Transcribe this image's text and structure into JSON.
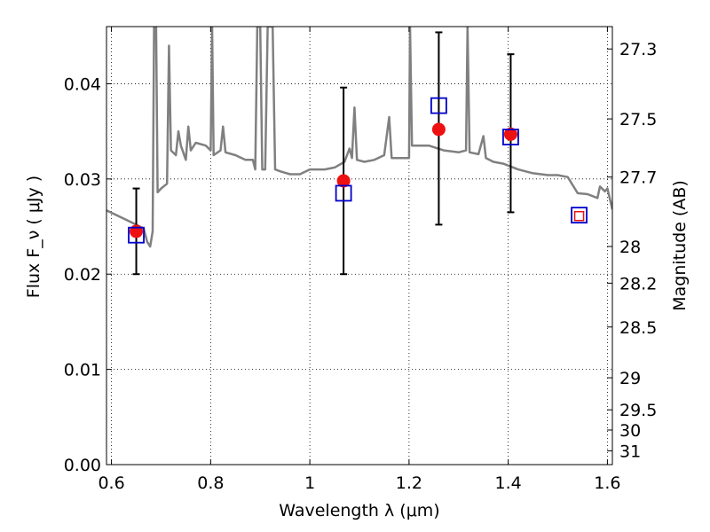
{
  "chart_data": {
    "type": "scatter",
    "xlabel": "Wavelength  λ (μm)",
    "ylabel": "Flux  F_ν  ( μJy )",
    "y2label": "Magnitude (AB)",
    "xlim": [
      0.59,
      1.61
    ],
    "ylim": [
      0.0,
      0.046
    ],
    "grid": true,
    "x_ticks": [
      0.6,
      0.8,
      1.0,
      1.2,
      1.4,
      1.6
    ],
    "x_tick_labels": [
      "0.6",
      "0.8",
      "1",
      "1.2",
      "1.4",
      "1.6"
    ],
    "y_ticks": [
      0.0,
      0.01,
      0.02,
      0.03,
      0.04
    ],
    "y_tick_labels": [
      "0.00",
      "0.01",
      "0.02",
      "0.03",
      "0.04"
    ],
    "mag_ticks": [
      27.3,
      27.5,
      27.7,
      28,
      28.2,
      28.5,
      29,
      29.5,
      30,
      31
    ],
    "mag_tick_labels": [
      "27.3",
      "27.5",
      "27.7",
      "28",
      "28.2",
      "28.5",
      "29",
      "29.5",
      "30",
      "31"
    ],
    "series": [
      {
        "kind": "observed",
        "color": "#ee1111",
        "points": [
          {
            "x": 0.65,
            "y": 0.0245,
            "yerr": [
              0.02,
              0.029
            ]
          },
          {
            "x": 1.068,
            "y": 0.0298,
            "yerr": [
              0.02,
              0.0396
            ]
          },
          {
            "x": 1.26,
            "y": 0.0352,
            "yerr": [
              0.0252,
              0.0454
            ]
          },
          {
            "x": 1.405,
            "y": 0.0347,
            "yerr": [
              0.0265,
              0.0431
            ]
          }
        ]
      },
      {
        "kind": "model-synthetic",
        "color": "#0000cc",
        "points": [
          {
            "x": 0.65,
            "y": 0.0241
          },
          {
            "x": 1.068,
            "y": 0.0285
          },
          {
            "x": 1.26,
            "y": 0.0377
          },
          {
            "x": 1.405,
            "y": 0.0344
          },
          {
            "x": 1.543,
            "y": 0.0262
          }
        ]
      },
      {
        "kind": "model-synthetic-inner",
        "color": "#ee1111",
        "points": [
          {
            "x": 1.543,
            "y": 0.0261
          }
        ]
      },
      {
        "kind": "template-spectrum",
        "color": "#808080",
        "points": [
          {
            "x": 0.59,
            "y": 0.0267
          },
          {
            "x": 0.61,
            "y": 0.0262
          },
          {
            "x": 0.63,
            "y": 0.0257
          },
          {
            "x": 0.65,
            "y": 0.0252
          },
          {
            "x": 0.665,
            "y": 0.0248
          },
          {
            "x": 0.672,
            "y": 0.0234
          },
          {
            "x": 0.678,
            "y": 0.0229
          },
          {
            "x": 0.683,
            "y": 0.0245
          },
          {
            "x": 0.686,
            "y": 0.046
          },
          {
            "x": 0.69,
            "y": 0.046
          },
          {
            "x": 0.693,
            "y": 0.0286
          },
          {
            "x": 0.7,
            "y": 0.029
          },
          {
            "x": 0.712,
            "y": 0.0295
          },
          {
            "x": 0.716,
            "y": 0.044
          },
          {
            "x": 0.72,
            "y": 0.033
          },
          {
            "x": 0.73,
            "y": 0.0325
          },
          {
            "x": 0.735,
            "y": 0.035
          },
          {
            "x": 0.74,
            "y": 0.0335
          },
          {
            "x": 0.75,
            "y": 0.032
          },
          {
            "x": 0.755,
            "y": 0.0355
          },
          {
            "x": 0.76,
            "y": 0.033
          },
          {
            "x": 0.77,
            "y": 0.0338
          },
          {
            "x": 0.79,
            "y": 0.0335
          },
          {
            "x": 0.8,
            "y": 0.033
          },
          {
            "x": 0.803,
            "y": 0.046
          },
          {
            "x": 0.806,
            "y": 0.0325
          },
          {
            "x": 0.82,
            "y": 0.033
          },
          {
            "x": 0.825,
            "y": 0.0355
          },
          {
            "x": 0.83,
            "y": 0.0328
          },
          {
            "x": 0.85,
            "y": 0.0325
          },
          {
            "x": 0.87,
            "y": 0.032
          },
          {
            "x": 0.885,
            "y": 0.032
          },
          {
            "x": 0.89,
            "y": 0.031
          },
          {
            "x": 0.894,
            "y": 0.046
          },
          {
            "x": 0.9,
            "y": 0.046
          },
          {
            "x": 0.904,
            "y": 0.031
          },
          {
            "x": 0.91,
            "y": 0.031
          },
          {
            "x": 0.915,
            "y": 0.046
          },
          {
            "x": 0.925,
            "y": 0.046
          },
          {
            "x": 0.93,
            "y": 0.031
          },
          {
            "x": 0.94,
            "y": 0.0308
          },
          {
            "x": 0.96,
            "y": 0.0305
          },
          {
            "x": 0.98,
            "y": 0.0305
          },
          {
            "x": 1.0,
            "y": 0.031
          },
          {
            "x": 1.03,
            "y": 0.031
          },
          {
            "x": 1.05,
            "y": 0.0312
          },
          {
            "x": 1.07,
            "y": 0.0318
          },
          {
            "x": 1.08,
            "y": 0.0332
          },
          {
            "x": 1.085,
            "y": 0.0322
          },
          {
            "x": 1.09,
            "y": 0.0375
          },
          {
            "x": 1.095,
            "y": 0.032
          },
          {
            "x": 1.11,
            "y": 0.0318
          },
          {
            "x": 1.13,
            "y": 0.032
          },
          {
            "x": 1.15,
            "y": 0.0325
          },
          {
            "x": 1.16,
            "y": 0.0365
          },
          {
            "x": 1.165,
            "y": 0.0322
          },
          {
            "x": 1.18,
            "y": 0.0322
          },
          {
            "x": 1.2,
            "y": 0.0322
          },
          {
            "x": 1.202,
            "y": 0.046
          },
          {
            "x": 1.206,
            "y": 0.0335
          },
          {
            "x": 1.24,
            "y": 0.0335
          },
          {
            "x": 1.27,
            "y": 0.033
          },
          {
            "x": 1.3,
            "y": 0.0328
          },
          {
            "x": 1.315,
            "y": 0.033
          },
          {
            "x": 1.318,
            "y": 0.046
          },
          {
            "x": 1.322,
            "y": 0.0328
          },
          {
            "x": 1.34,
            "y": 0.0326
          },
          {
            "x": 1.35,
            "y": 0.0345
          },
          {
            "x": 1.355,
            "y": 0.0322
          },
          {
            "x": 1.37,
            "y": 0.0318
          },
          {
            "x": 1.39,
            "y": 0.0316
          },
          {
            "x": 1.42,
            "y": 0.031
          },
          {
            "x": 1.45,
            "y": 0.0306
          },
          {
            "x": 1.48,
            "y": 0.0304
          },
          {
            "x": 1.5,
            "y": 0.0304
          },
          {
            "x": 1.52,
            "y": 0.0302
          },
          {
            "x": 1.54,
            "y": 0.0285
          },
          {
            "x": 1.56,
            "y": 0.0284
          },
          {
            "x": 1.58,
            "y": 0.028
          },
          {
            "x": 1.585,
            "y": 0.0292
          },
          {
            "x": 1.595,
            "y": 0.0287
          },
          {
            "x": 1.6,
            "y": 0.029
          },
          {
            "x": 1.61,
            "y": 0.0268
          }
        ]
      }
    ]
  }
}
